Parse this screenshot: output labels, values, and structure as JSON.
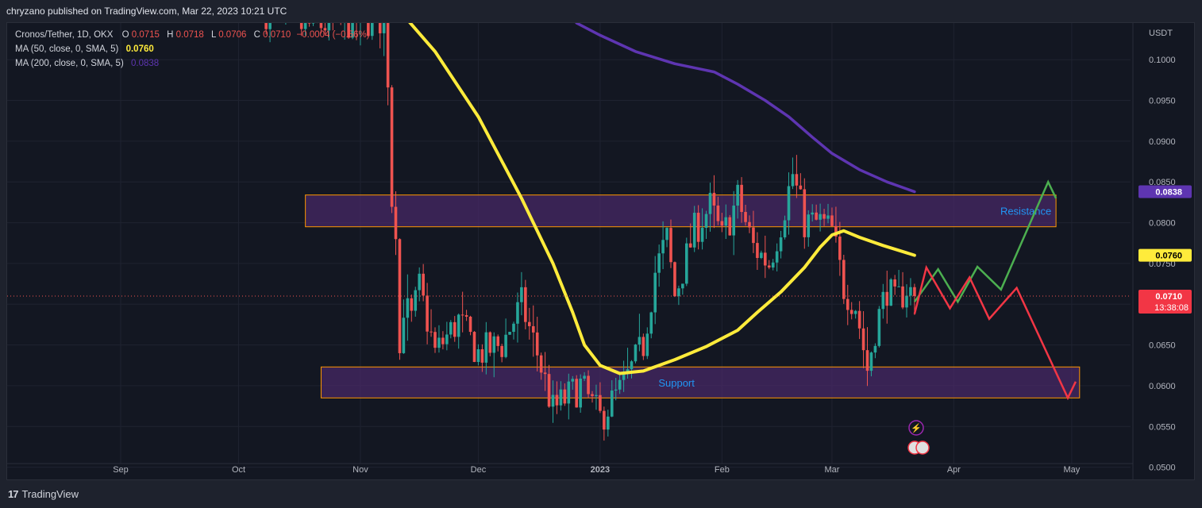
{
  "header": {
    "publisher_line": "chryzano published on TradingView.com, Mar 22, 2023 10:21 UTC"
  },
  "footer": {
    "brand": "TradingView",
    "logo_glyph": "17"
  },
  "legend": {
    "symbol": "Cronos/Tether, 1D, OKX",
    "o_label": "O",
    "o_value": "0.0715",
    "h_label": "H",
    "h_value": "0.0718",
    "l_label": "L",
    "l_value": "0.0706",
    "c_label": "C",
    "c_value": "0.0710",
    "change": "−0.0004 (−0.56%)",
    "ma50_label": "MA (50, close, 0, SMA, 5)",
    "ma50_value": "0.0760",
    "ma200_label": "MA (200, close, 0, SMA, 5)",
    "ma200_value": "0.0838"
  },
  "colors": {
    "up": "#26a69a",
    "down": "#ef5350",
    "ma50": "#ffeb3b",
    "ma200": "#5e35b1",
    "zone_fill": "#4a2a6a",
    "zone_border": "#ff9800",
    "zone_text": "#2196f3",
    "projection_up": "#4caf50",
    "projection_down": "#f23645"
  },
  "chart_data": {
    "type": "candlestick",
    "title": "Cronos/Tether, 1D, OKX",
    "y_unit": "USDT",
    "ylim": [
      0.0485,
      0.1045
    ],
    "y_ticks": [
      "0.1000",
      "0.0950",
      "0.0900",
      "0.0850",
      "0.0800",
      "0.0750",
      "0.0700",
      "0.0650",
      "0.0600",
      "0.0550",
      "0.0500"
    ],
    "x_ticks": [
      {
        "label": "Sep",
        "date": "2022-09-01"
      },
      {
        "label": "Oct",
        "date": "2022-10-01"
      },
      {
        "label": "Nov",
        "date": "2022-11-01"
      },
      {
        "label": "Dec",
        "date": "2022-12-01"
      },
      {
        "label": "2023",
        "date": "2023-01-01"
      },
      {
        "label": "Feb",
        "date": "2023-02-01"
      },
      {
        "label": "Mar",
        "date": "2023-03-01"
      },
      {
        "label": "Apr",
        "date": "2023-04-01"
      },
      {
        "label": "May",
        "date": "2023-05-01"
      }
    ],
    "candle_anchors": [
      {
        "date": "2022-10-08",
        "value": 0.106
      },
      {
        "date": "2022-10-15",
        "value": 0.104
      },
      {
        "date": "2022-11-07",
        "value": 0.105
      },
      {
        "date": "2022-11-08",
        "value": 0.098
      },
      {
        "date": "2022-11-09",
        "value": 0.083
      },
      {
        "date": "2022-11-10",
        "value": 0.08
      },
      {
        "date": "2022-11-11",
        "value": 0.064
      },
      {
        "date": "2022-11-12",
        "value": 0.07
      },
      {
        "date": "2022-11-14",
        "value": 0.068
      },
      {
        "date": "2022-11-16",
        "value": 0.072
      },
      {
        "date": "2022-11-20",
        "value": 0.064
      },
      {
        "date": "2022-11-26",
        "value": 0.068
      },
      {
        "date": "2022-12-01",
        "value": 0.064
      },
      {
        "date": "2022-12-07",
        "value": 0.065
      },
      {
        "date": "2022-12-12",
        "value": 0.07
      },
      {
        "date": "2022-12-16",
        "value": 0.064
      },
      {
        "date": "2022-12-20",
        "value": 0.057
      },
      {
        "date": "2022-12-27",
        "value": 0.06
      },
      {
        "date": "2023-01-01",
        "value": 0.056
      },
      {
        "date": "2023-01-07",
        "value": 0.06
      },
      {
        "date": "2023-01-12",
        "value": 0.065
      },
      {
        "date": "2023-01-15",
        "value": 0.074
      },
      {
        "date": "2023-01-18",
        "value": 0.078
      },
      {
        "date": "2023-01-20",
        "value": 0.071
      },
      {
        "date": "2023-01-25",
        "value": 0.079
      },
      {
        "date": "2023-01-29",
        "value": 0.082
      },
      {
        "date": "2023-02-01",
        "value": 0.078
      },
      {
        "date": "2023-02-05",
        "value": 0.083
      },
      {
        "date": "2023-02-09",
        "value": 0.077
      },
      {
        "date": "2023-02-13",
        "value": 0.075
      },
      {
        "date": "2023-02-16",
        "value": 0.08
      },
      {
        "date": "2023-02-19",
        "value": 0.086
      },
      {
        "date": "2023-02-22",
        "value": 0.08
      },
      {
        "date": "2023-02-26",
        "value": 0.08
      },
      {
        "date": "2023-03-01",
        "value": 0.079
      },
      {
        "date": "2023-03-04",
        "value": 0.072
      },
      {
        "date": "2023-03-07",
        "value": 0.07
      },
      {
        "date": "2023-03-10",
        "value": 0.062
      },
      {
        "date": "2023-03-12",
        "value": 0.067
      },
      {
        "date": "2023-03-15",
        "value": 0.072
      },
      {
        "date": "2023-03-17",
        "value": 0.07
      },
      {
        "date": "2023-03-20",
        "value": 0.072
      },
      {
        "date": "2023-03-22",
        "value": 0.071
      }
    ],
    "series": [
      {
        "name": "MA (50, close, 0, SMA, 5)",
        "points": [
          [
            "2022-11-11",
            0.106
          ],
          [
            "2022-11-20",
            0.101
          ],
          [
            "2022-12-01",
            0.093
          ],
          [
            "2022-12-12",
            0.083
          ],
          [
            "2022-12-20",
            0.075
          ],
          [
            "2022-12-25",
            0.069
          ],
          [
            "2022-12-28",
            0.065
          ],
          [
            "2023-01-01",
            0.0625
          ],
          [
            "2023-01-06",
            0.0615
          ],
          [
            "2023-01-12",
            0.0618
          ],
          [
            "2023-01-20",
            0.0632
          ],
          [
            "2023-01-28",
            0.0648
          ],
          [
            "2023-02-05",
            0.0668
          ],
          [
            "2023-02-10",
            0.069
          ],
          [
            "2023-02-16",
            0.0715
          ],
          [
            "2023-02-22",
            0.0745
          ],
          [
            "2023-02-26",
            0.077
          ],
          [
            "2023-03-01",
            0.0785
          ],
          [
            "2023-03-04",
            0.079
          ],
          [
            "2023-03-08",
            0.0782
          ],
          [
            "2023-03-14",
            0.0772
          ],
          [
            "2023-03-22",
            0.076
          ]
        ]
      },
      {
        "name": "MA (200, close, 0, SMA, 5)",
        "points": [
          [
            "2022-12-26",
            0.1045
          ],
          [
            "2023-01-01",
            0.103
          ],
          [
            "2023-01-10",
            0.101
          ],
          [
            "2023-01-20",
            0.0995
          ],
          [
            "2023-01-30",
            0.0985
          ],
          [
            "2023-02-05",
            0.097
          ],
          [
            "2023-02-12",
            0.095
          ],
          [
            "2023-02-18",
            0.093
          ],
          [
            "2023-02-24",
            0.0905
          ],
          [
            "2023-03-01",
            0.0885
          ],
          [
            "2023-03-08",
            0.0865
          ],
          [
            "2023-03-15",
            0.085
          ],
          [
            "2023-03-22",
            0.0838
          ]
        ]
      }
    ],
    "zones": [
      {
        "label": "Resistance",
        "from": 0.0795,
        "to": 0.0834,
        "start": "2022-10-18",
        "end": "2023-04-27"
      },
      {
        "label": "Support",
        "from": 0.0585,
        "to": 0.0623,
        "start": "2022-10-22",
        "end": "2023-05-03"
      }
    ],
    "projections": [
      {
        "name": "bullish",
        "points": [
          [
            "2023-03-22",
            0.0703
          ],
          [
            "2023-03-28",
            0.0743
          ],
          [
            "2023-04-02",
            0.0703
          ],
          [
            "2023-04-07",
            0.0746
          ],
          [
            "2023-04-13",
            0.0718
          ],
          [
            "2023-04-25",
            0.085
          ],
          [
            "2023-04-27",
            0.083
          ]
        ]
      },
      {
        "name": "bearish",
        "points": [
          [
            "2023-03-22",
            0.0688
          ],
          [
            "2023-03-25",
            0.0745
          ],
          [
            "2023-03-31",
            0.0695
          ],
          [
            "2023-04-05",
            0.0733
          ],
          [
            "2023-04-10",
            0.0682
          ],
          [
            "2023-04-17",
            0.072
          ],
          [
            "2023-04-30",
            0.0585
          ],
          [
            "2023-05-02",
            0.0605
          ]
        ]
      }
    ],
    "last_price": {
      "value": 0.071,
      "countdown": "13:38:08"
    },
    "price_labels": [
      {
        "value": 0.0838,
        "text": "0.0838"
      },
      {
        "value": 0.076,
        "text": "0.0760"
      },
      {
        "value": 0.071,
        "text": "0.0710"
      }
    ],
    "grid": true
  }
}
